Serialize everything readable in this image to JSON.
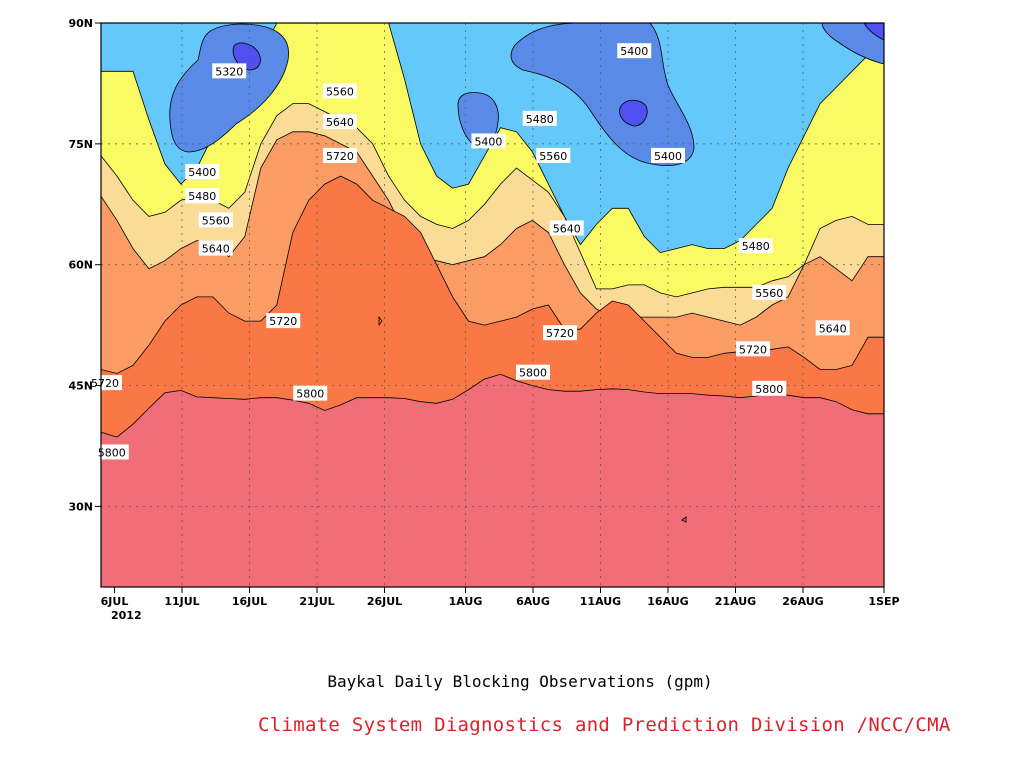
{
  "chart_data": {
    "type": "heatmap",
    "title": "Baykal Daily Blocking Observations (gpm)",
    "credit": "Climate System Diagnostics and Prediction Division /NCC/CMA",
    "x_axis": {
      "ticks": [
        "6JUL",
        "11JUL",
        "16JUL",
        "21JUL",
        "26JUL",
        "1AUG",
        "6AUG",
        "11AUG",
        "16AUG",
        "21AUG",
        "26AUG",
        "1SEP"
      ],
      "tick_days": [
        0,
        5,
        10,
        15,
        20,
        26,
        31,
        36,
        41,
        46,
        51,
        57
      ],
      "year_label": "2012",
      "range_days": [
        -1,
        57
      ]
    },
    "y_axis": {
      "ticks": [
        "30N",
        "45N",
        "60N",
        "75N",
        "90N"
      ],
      "tick_lats": [
        30,
        45,
        60,
        75,
        90
      ],
      "range": [
        20,
        90
      ]
    },
    "grid": "dotted",
    "levels": [
      5320,
      5400,
      5480,
      5560,
      5640,
      5720,
      5800
    ],
    "fill_colors": [
      "#5050f0",
      "#5a8ae8",
      "#64c8fa",
      "#fafa64",
      "#fadc96",
      "#fa9c64",
      "#fa7846",
      "#f06e78"
    ],
    "contour_boundaries": [
      {
        "level": 5800,
        "lats": [
          39.2,
          38.6,
          40.2,
          42.2,
          44.1,
          44.4,
          43.6,
          43.5,
          43.4,
          43.3,
          43.5,
          43.5,
          43.2,
          42.8,
          41.9,
          42.6,
          43.5,
          43.5,
          43.5,
          43.4,
          43.0,
          42.8,
          43.3,
          44.5,
          45.8,
          46.4,
          45.6,
          45.0,
          44.5,
          44.3,
          44.3,
          44.5,
          44.6,
          44.5,
          44.2,
          44.0,
          44.0,
          44.0,
          43.8,
          43.7,
          43.5,
          43.7,
          44.0,
          43.8,
          43.5,
          43.5,
          43.0,
          42.0,
          41.5,
          41.5
        ]
      },
      {
        "level": 5720,
        "lats": [
          47.0,
          46.5,
          47.5,
          50.0,
          53.0,
          55.0,
          56.0,
          56.0,
          54.0,
          53.0,
          53.0,
          55.0,
          64.0,
          68.0,
          70.0,
          71.0,
          70.0,
          68.0,
          67.0,
          66.0,
          64.0,
          60.0,
          56.0,
          53.0,
          52.5,
          53.0,
          53.5,
          54.5,
          55.0,
          52.0,
          52.0,
          54.0,
          55.5,
          55.0,
          53.0,
          51.0,
          49.0,
          48.5,
          48.5,
          49.0,
          49.2,
          49.0,
          49.5,
          49.8,
          48.5,
          47.0,
          47.0,
          47.5,
          51.0,
          51.0
        ]
      },
      {
        "level": 5640,
        "lats": [
          68.5,
          65.5,
          62.0,
          59.5,
          60.5,
          62.0,
          63.0,
          62.5,
          61.0,
          63.5,
          72.0,
          75.5,
          76.5,
          76.5,
          76.0,
          75.0,
          74.0,
          71.0,
          68.0,
          64.0,
          61.0,
          60.5,
          60.0,
          60.5,
          61.0,
          62.5,
          64.5,
          65.5,
          64.0,
          60.0,
          56.5,
          54.5,
          53.5,
          53.5,
          53.5,
          53.5,
          53.5,
          54.0,
          53.5,
          53.0,
          52.5,
          53.5,
          55.0,
          56.0,
          60.0,
          61.0,
          59.5,
          58.0,
          61.0,
          61.0
        ]
      },
      {
        "level": 5560,
        "lats": [
          73.5,
          71.0,
          68.0,
          66.0,
          66.5,
          68.0,
          68.5,
          68.0,
          67.0,
          69.0,
          75.0,
          78.5,
          80.0,
          80.0,
          79.0,
          78.0,
          77.0,
          75.0,
          71.0,
          68.0,
          66.0,
          65.0,
          64.5,
          65.5,
          67.5,
          70.0,
          72.0,
          70.5,
          69.0,
          66.0,
          61.5,
          57.0,
          57.0,
          57.5,
          57.5,
          56.5,
          56.0,
          56.5,
          57.0,
          57.2,
          57.2,
          57.2,
          58.0,
          58.5,
          60.0,
          64.5,
          65.5,
          66.0,
          65.0,
          65.0
        ]
      },
      {
        "level": 5480,
        "lats": [
          84.0,
          84.0,
          84.0,
          78.0,
          72.5,
          70.0,
          72.0,
          76.0,
          79.0,
          82.0,
          86.0,
          90.0,
          90.0,
          90.0,
          90.0,
          90.0,
          90.0,
          90.0,
          90.0,
          83.0,
          75.0,
          71.0,
          69.5,
          70.0,
          73.5,
          77.0,
          76.5,
          74.0,
          70.0,
          66.0,
          62.5,
          65.0,
          67.0,
          67.0,
          63.5,
          61.5,
          62.0,
          62.5,
          62.0,
          62.0,
          63.0,
          65.0,
          67.0,
          72.0,
          76.0,
          80.0,
          82.0,
          84.0,
          86.0,
          86.0
        ]
      }
    ],
    "closed_contours": [
      {
        "level": 5320,
        "lat": 86.5,
        "day": 8.5,
        "area": "small"
      },
      {
        "level": 5400,
        "lat": 79,
        "day": 9,
        "area": "region around 5320"
      },
      {
        "level": 5400,
        "lat": 79,
        "day": 27,
        "area": "small"
      },
      {
        "level": 5400,
        "lat": 80,
        "day": 38,
        "area": "region near 11AUG"
      },
      {
        "level": 5320,
        "lat": 79.5,
        "day": 38.3,
        "area": "small"
      }
    ],
    "contour_labels": [
      {
        "text": "5320",
        "day": 8.5,
        "lat": 84
      },
      {
        "text": "5400",
        "day": 6.5,
        "lat": 71.5
      },
      {
        "text": "5480",
        "day": 6.5,
        "lat": 68.5
      },
      {
        "text": "5560",
        "day": 7.5,
        "lat": 65.5
      },
      {
        "text": "5640",
        "day": 7.5,
        "lat": 62
      },
      {
        "text": "5720",
        "day": 12.5,
        "lat": 53
      },
      {
        "text": "5720",
        "day": -0.7,
        "lat": 45.3
      },
      {
        "text": "5800",
        "day": -0.2,
        "lat": 36.7
      },
      {
        "text": "5800",
        "day": 14.5,
        "lat": 44
      },
      {
        "text": "5560",
        "day": 16.7,
        "lat": 81.5
      },
      {
        "text": "5640",
        "day": 16.7,
        "lat": 77.7
      },
      {
        "text": "5720",
        "day": 16.7,
        "lat": 73.5
      },
      {
        "text": "5400",
        "day": 27.7,
        "lat": 75.3
      },
      {
        "text": "5480",
        "day": 31.5,
        "lat": 78.1
      },
      {
        "text": "5560",
        "day": 32.5,
        "lat": 73.5
      },
      {
        "text": "5640",
        "day": 33.5,
        "lat": 64.5
      },
      {
        "text": "5720",
        "day": 33,
        "lat": 51.5
      },
      {
        "text": "5800",
        "day": 31,
        "lat": 46.6
      },
      {
        "text": "5400",
        "day": 38.5,
        "lat": 86.5
      },
      {
        "text": "5400",
        "day": 41,
        "lat": 73.5
      },
      {
        "text": "5480",
        "day": 47.5,
        "lat": 62.3
      },
      {
        "text": "5560",
        "day": 48.5,
        "lat": 56.5
      },
      {
        "text": "5720",
        "day": 47.3,
        "lat": 49.5
      },
      {
        "text": "5800",
        "day": 48.5,
        "lat": 44.6
      },
      {
        "text": "5640",
        "day": 53.2,
        "lat": 52.1
      }
    ]
  }
}
